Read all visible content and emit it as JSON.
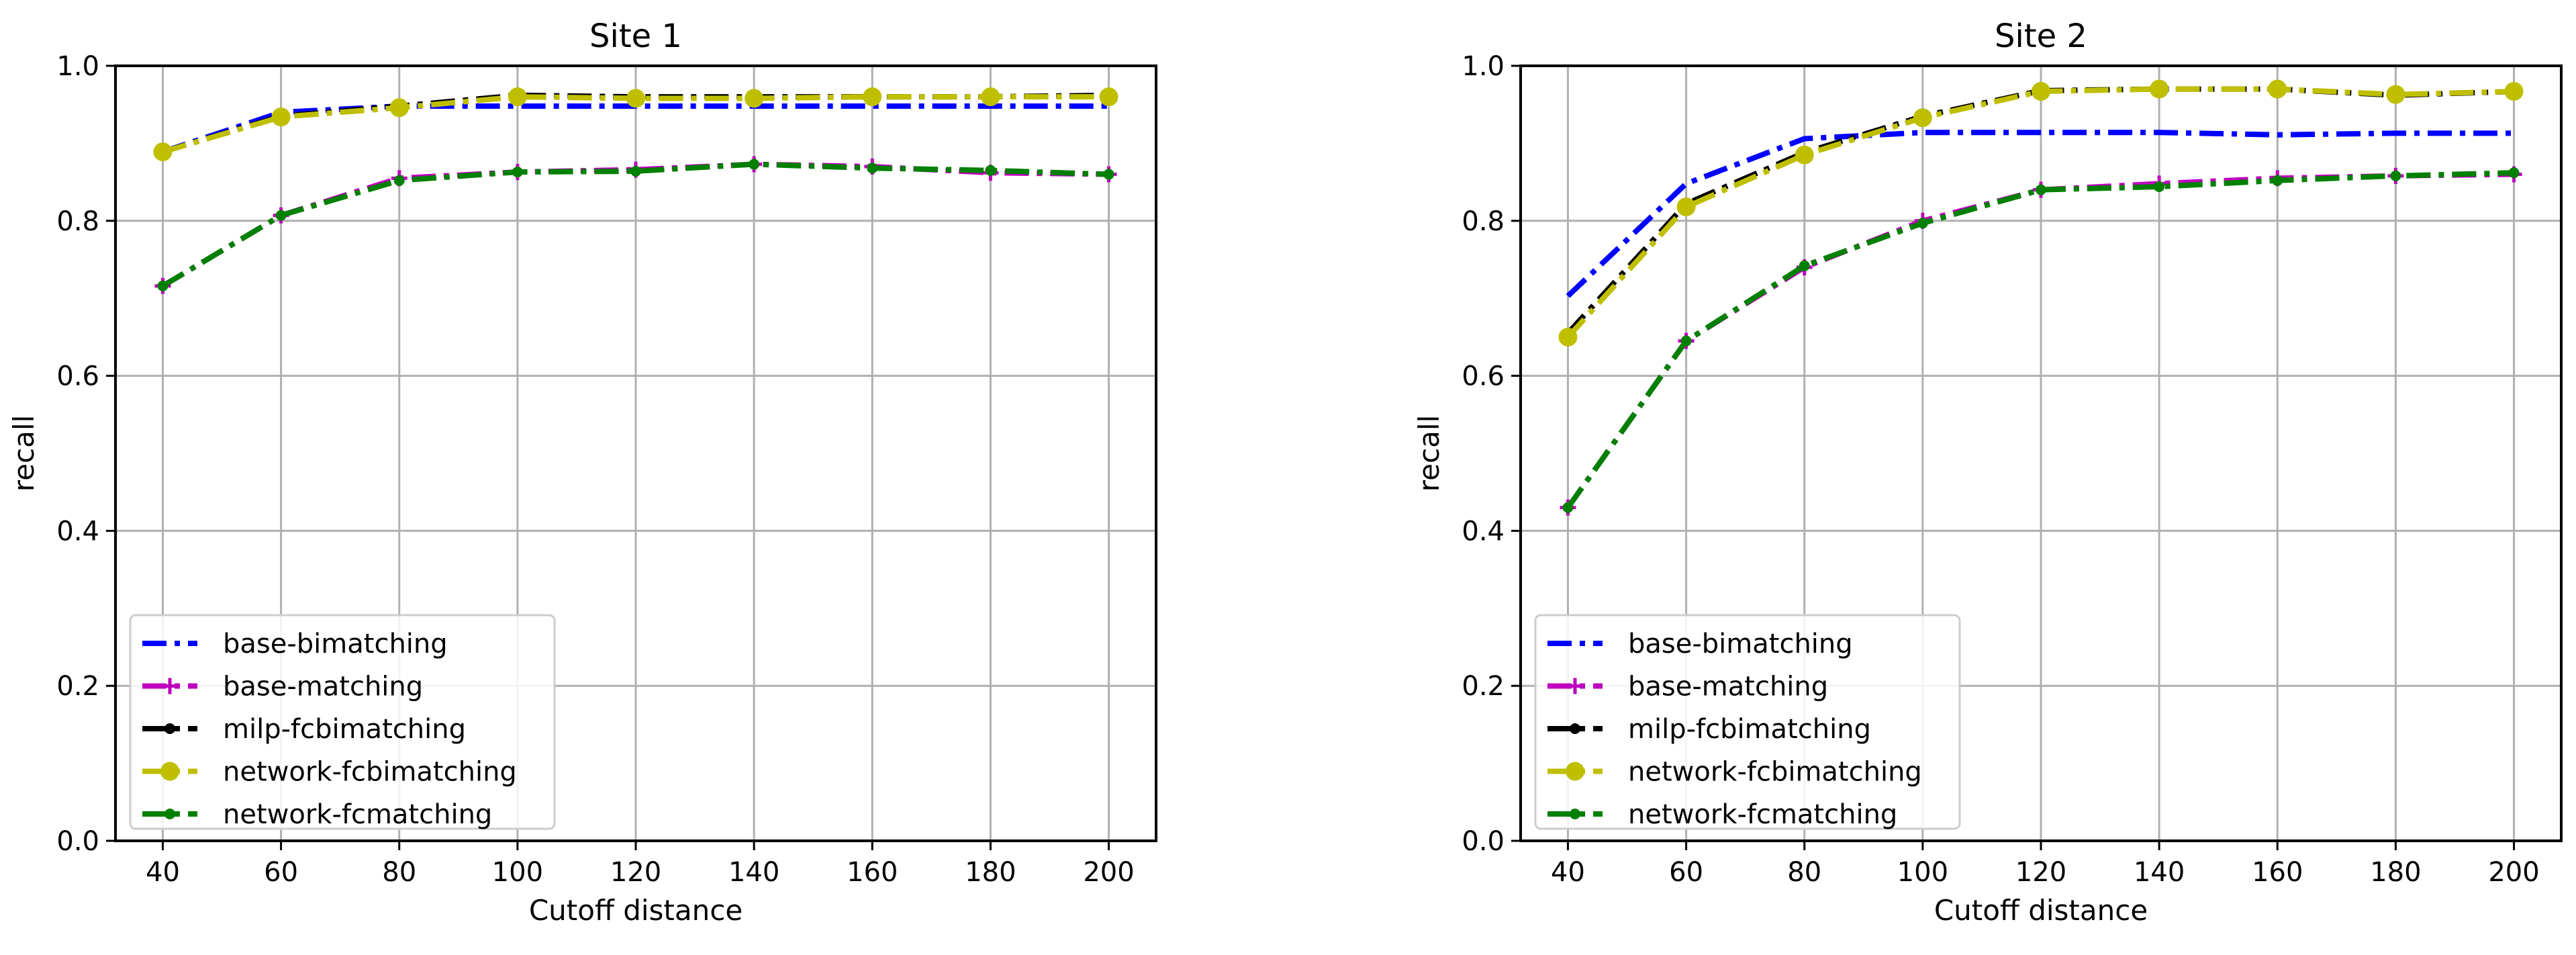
{
  "colors": {
    "base-bimatching": "#0000ff",
    "base-matching": "#bf00bf",
    "milp-fcbimatching": "#000000",
    "network-fcbimatching": "#bfbf00",
    "network-fcmatching": "#008000",
    "grid": "#b0b0b0"
  },
  "chart_data": [
    {
      "type": "line",
      "title": "Site 1",
      "xlabel": "Cutoff distance",
      "ylabel": "recall",
      "x": [
        40,
        60,
        80,
        100,
        120,
        140,
        160,
        180,
        200
      ],
      "xticks": [
        "40",
        "60",
        "80",
        "100",
        "120",
        "140",
        "160",
        "180",
        "200"
      ],
      "xlim": [
        32,
        208
      ],
      "ylim": [
        0.0,
        1.0
      ],
      "yticks": [
        "0.0",
        "0.2",
        "0.4",
        "0.6",
        "0.8",
        "1.0"
      ],
      "grid": true,
      "legend_position": "lower-left",
      "series": [
        {
          "name": "base-bimatching",
          "marker": "none",
          "values": [
            0.889,
            0.94,
            0.948,
            0.948,
            0.948,
            0.948,
            0.948,
            0.948,
            0.948
          ]
        },
        {
          "name": "base-matching",
          "marker": "plus",
          "values": [
            0.716,
            0.807,
            0.855,
            0.863,
            0.866,
            0.873,
            0.87,
            0.862,
            0.86
          ]
        },
        {
          "name": "milp-fcbimatching",
          "marker": "small-dot",
          "values": [
            0.889,
            0.935,
            0.948,
            0.962,
            0.96,
            0.96,
            0.96,
            0.96,
            0.962
          ]
        },
        {
          "name": "network-fcbimatching",
          "marker": "large-dot",
          "values": [
            0.889,
            0.934,
            0.946,
            0.96,
            0.958,
            0.958,
            0.96,
            0.96,
            0.96
          ]
        },
        {
          "name": "network-fcmatching",
          "marker": "small-dot",
          "values": [
            0.716,
            0.807,
            0.852,
            0.863,
            0.864,
            0.873,
            0.868,
            0.865,
            0.86
          ]
        }
      ]
    },
    {
      "type": "line",
      "title": "Site 2",
      "xlabel": "Cutoff distance",
      "ylabel": "recall",
      "x": [
        40,
        60,
        80,
        100,
        120,
        140,
        160,
        180,
        200
      ],
      "xticks": [
        "40",
        "60",
        "80",
        "100",
        "120",
        "140",
        "160",
        "180",
        "200"
      ],
      "xlim": [
        32,
        208
      ],
      "ylim": [
        0.0,
        1.0
      ],
      "yticks": [
        "0.0",
        "0.2",
        "0.4",
        "0.6",
        "0.8",
        "1.0"
      ],
      "grid": true,
      "legend_position": "lower-left",
      "series": [
        {
          "name": "base-bimatching",
          "marker": "none",
          "values": [
            0.703,
            0.848,
            0.906,
            0.914,
            0.914,
            0.914,
            0.911,
            0.913,
            0.913
          ]
        },
        {
          "name": "base-matching",
          "marker": "plus",
          "values": [
            0.43,
            0.645,
            0.74,
            0.8,
            0.84,
            0.848,
            0.855,
            0.858,
            0.86
          ]
        },
        {
          "name": "milp-fcbimatching",
          "marker": "small-dot",
          "values": [
            0.655,
            0.822,
            0.888,
            0.935,
            0.968,
            0.97,
            0.97,
            0.962,
            0.967
          ]
        },
        {
          "name": "network-fcbimatching",
          "marker": "large-dot",
          "values": [
            0.65,
            0.818,
            0.885,
            0.933,
            0.967,
            0.97,
            0.97,
            0.963,
            0.967
          ]
        },
        {
          "name": "network-fcmatching",
          "marker": "small-dot",
          "values": [
            0.43,
            0.645,
            0.742,
            0.797,
            0.84,
            0.844,
            0.852,
            0.858,
            0.862
          ]
        }
      ]
    }
  ]
}
